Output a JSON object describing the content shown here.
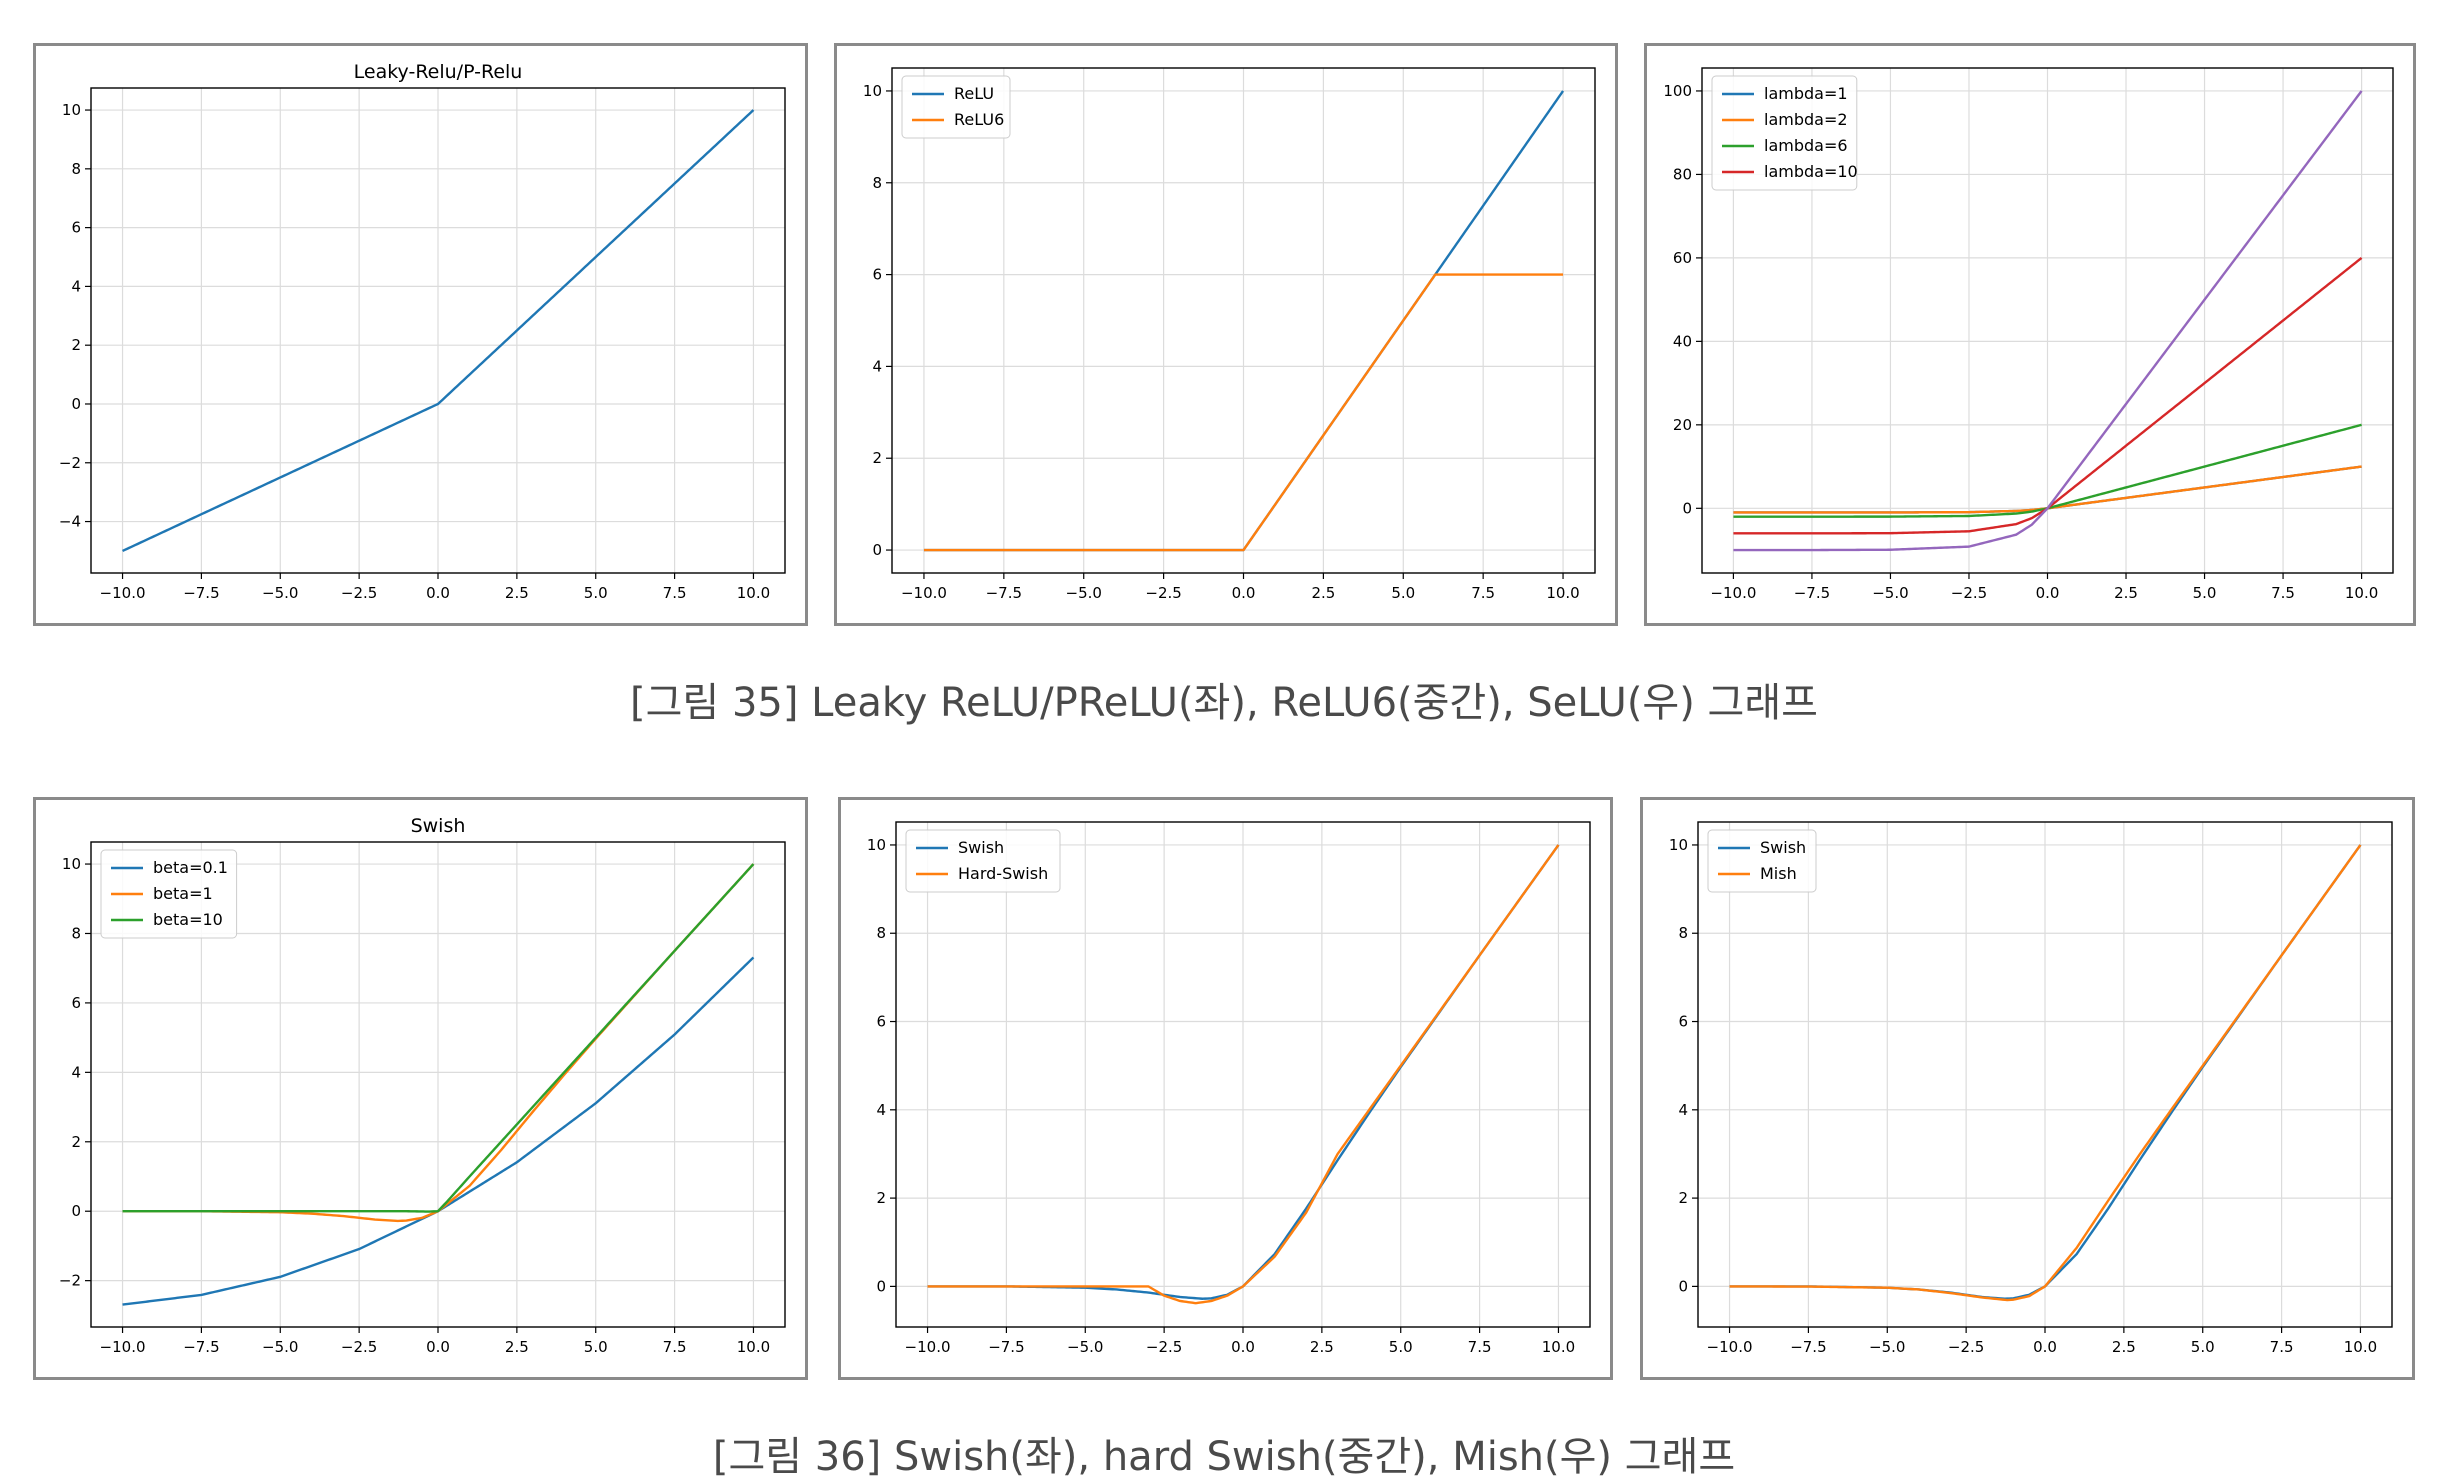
{
  "captions": {
    "fig35": "[그림 35] Leaky ReLU/PReLU(좌), ReLU6(중간), SeLU(우) 그래프",
    "fig36": "[그림 36] Swish(좌), hard Swish(중간), Mish(우) 그래프"
  },
  "chart_data": [
    {
      "type": "line",
      "title": "Leaky-Relu/P-Relu",
      "xlim": [
        -10.0,
        10.0
      ],
      "ylim": [
        -5.0,
        10.0
      ],
      "xticks": [
        -10.0,
        -7.5,
        -5.0,
        -2.5,
        0.0,
        2.5,
        5.0,
        7.5,
        10.0
      ],
      "yticks": [
        -4,
        -2,
        0,
        2,
        4,
        6,
        8,
        10
      ],
      "grid": true,
      "legend": "none",
      "series": [
        {
          "color": "#1f77b4",
          "x": [
            -10,
            0,
            10
          ],
          "y": [
            -5,
            0,
            10
          ]
        }
      ]
    },
    {
      "type": "line",
      "title": "",
      "xlim": [
        -10.0,
        10.0
      ],
      "ylim": [
        0.0,
        10.0
      ],
      "xticks": [
        -10.0,
        -7.5,
        -5.0,
        -2.5,
        0.0,
        2.5,
        5.0,
        7.5,
        10.0
      ],
      "yticks": [
        0,
        2,
        4,
        6,
        8,
        10
      ],
      "grid": true,
      "legend": "upper-left",
      "series": [
        {
          "name": "ReLU",
          "color": "#1f77b4",
          "x": [
            -10,
            0,
            10
          ],
          "y": [
            0,
            0,
            10
          ]
        },
        {
          "name": "ReLU6",
          "color": "#ff7f0e",
          "x": [
            -10,
            0,
            6,
            10
          ],
          "y": [
            0,
            0,
            6,
            6
          ]
        }
      ]
    },
    {
      "type": "line",
      "title": "",
      "xlim": [
        -10.0,
        10.0
      ],
      "ylim": [
        -10.0,
        100.0
      ],
      "xticks": [
        -10.0,
        -7.5,
        -5.0,
        -2.5,
        0.0,
        2.5,
        5.0,
        7.5,
        10.0
      ],
      "yticks": [
        0,
        20,
        40,
        60,
        80,
        100
      ],
      "grid": true,
      "legend": "upper-left",
      "series": [
        {
          "name": "lambda=1",
          "color": "#1f77b4",
          "x": [
            -10,
            -7.5,
            -5,
            -2.5,
            -1,
            -0.5,
            0,
            2.5,
            5,
            7.5,
            10
          ],
          "y": [
            -1,
            -1,
            -1,
            -0.92,
            -0.63,
            -0.39,
            0,
            2.5,
            5,
            7.5,
            10
          ]
        },
        {
          "name": "lambda=2",
          "color": "#ff7f0e",
          "x": [
            -10,
            -7.5,
            -5,
            -2.5,
            -1,
            -0.5,
            0,
            2.5,
            5,
            7.5,
            10
          ],
          "y": [
            -1,
            -1,
            -1,
            -0.92,
            -0.63,
            -0.39,
            0,
            2.5,
            5,
            7.5,
            10
          ]
        },
        {
          "name": "lambda=6",
          "color": "#2ca02c",
          "x": [
            -10,
            -7.5,
            -5,
            -2.5,
            -1,
            -0.5,
            0,
            2.5,
            5,
            7.5,
            10
          ],
          "y": [
            -2,
            -2,
            -1.99,
            -1.84,
            -1.26,
            -0.79,
            0,
            5,
            10,
            15,
            20
          ]
        },
        {
          "name": "lambda=10",
          "color": "#d62728",
          "x": [
            -10,
            -7.5,
            -5,
            -2.5,
            -1,
            -0.5,
            0,
            2.5,
            5,
            7.5,
            10
          ],
          "y": [
            -6,
            -6,
            -5.96,
            -5.51,
            -3.79,
            -2.36,
            0,
            15,
            30,
            45,
            60
          ]
        },
        {
          "color": "#9467bd",
          "x": [
            -10,
            -7.5,
            -5,
            -2.5,
            -1,
            -0.5,
            0,
            2.5,
            5,
            7.5,
            10
          ],
          "y": [
            -10,
            -10,
            -9.93,
            -9.18,
            -6.32,
            -3.93,
            0,
            25,
            50,
            75,
            100
          ]
        }
      ]
    },
    {
      "type": "line",
      "title": "Swish",
      "xlim": [
        -10.0,
        10.0
      ],
      "ylim": [
        -2.7,
        10.0
      ],
      "xticks": [
        -10.0,
        -7.5,
        -5.0,
        -2.5,
        0.0,
        2.5,
        5.0,
        7.5,
        10.0
      ],
      "yticks": [
        -2,
        0,
        2,
        4,
        6,
        8,
        10
      ],
      "grid": true,
      "legend": "upper-left",
      "series": [
        {
          "name": "beta=0.1",
          "color": "#1f77b4",
          "x": [
            -10,
            -7.5,
            -5,
            -2.5,
            0,
            2.5,
            5,
            7.5,
            10
          ],
          "y": [
            -2.69,
            -2.41,
            -1.89,
            -1.09,
            0,
            1.41,
            3.11,
            5.09,
            7.31
          ]
        },
        {
          "name": "beta=1",
          "color": "#ff7f0e",
          "x": [
            -10,
            -7.5,
            -5,
            -4,
            -3,
            -2,
            -1.28,
            -1,
            -0.5,
            0,
            1,
            2,
            3,
            4,
            5,
            7.5,
            10
          ],
          "y": [
            0,
            0,
            -0.03,
            -0.07,
            -0.14,
            -0.24,
            -0.28,
            -0.27,
            -0.19,
            0,
            0.73,
            1.76,
            2.86,
            3.93,
            4.97,
            7.5,
            10
          ]
        },
        {
          "name": "beta=10",
          "color": "#2ca02c",
          "x": [
            -10,
            -1,
            -0.3,
            0,
            0.3,
            1,
            10
          ],
          "y": [
            0,
            0,
            -0.01,
            0,
            0.29,
            1,
            10
          ]
        }
      ]
    },
    {
      "type": "line",
      "title": "",
      "xlim": [
        -10.0,
        10.0
      ],
      "ylim": [
        -0.4,
        10.0
      ],
      "xticks": [
        -10.0,
        -7.5,
        -5.0,
        -2.5,
        0.0,
        2.5,
        5.0,
        7.5,
        10.0
      ],
      "yticks": [
        0,
        2,
        4,
        6,
        8,
        10
      ],
      "grid": true,
      "legend": "upper-left",
      "series": [
        {
          "name": "Swish",
          "color": "#1f77b4",
          "x": [
            -10,
            -7.5,
            -5,
            -4,
            -3,
            -2,
            -1.28,
            -1,
            -0.5,
            0,
            1,
            2,
            3,
            4,
            5,
            7.5,
            10
          ],
          "y": [
            0,
            0,
            -0.03,
            -0.07,
            -0.14,
            -0.24,
            -0.28,
            -0.27,
            -0.19,
            0,
            0.73,
            1.76,
            2.86,
            3.93,
            4.97,
            7.5,
            10
          ]
        },
        {
          "name": "Hard-Swish",
          "color": "#ff7f0e",
          "x": [
            -10,
            -3,
            -2.5,
            -2,
            -1.5,
            -1,
            -0.5,
            0,
            1,
            2,
            3,
            5,
            10
          ],
          "y": [
            0,
            0,
            -0.21,
            -0.33,
            -0.38,
            -0.33,
            -0.21,
            0,
            0.67,
            1.67,
            3,
            5,
            10
          ]
        }
      ]
    },
    {
      "type": "line",
      "title": "",
      "xlim": [
        -10.0,
        10.0
      ],
      "ylim": [
        -0.4,
        10.0
      ],
      "xticks": [
        -10.0,
        -7.5,
        -5.0,
        -2.5,
        0.0,
        2.5,
        5.0,
        7.5,
        10.0
      ],
      "yticks": [
        0,
        2,
        4,
        6,
        8,
        10
      ],
      "grid": true,
      "legend": "upper-left",
      "series": [
        {
          "name": "Swish",
          "color": "#1f77b4",
          "x": [
            -10,
            -7.5,
            -5,
            -4,
            -3,
            -2,
            -1.28,
            -1,
            -0.5,
            0,
            1,
            2,
            3,
            4,
            5,
            7.5,
            10
          ],
          "y": [
            0,
            0,
            -0.03,
            -0.07,
            -0.14,
            -0.24,
            -0.28,
            -0.27,
            -0.19,
            0,
            0.73,
            1.76,
            2.86,
            3.93,
            4.97,
            7.5,
            10
          ]
        },
        {
          "name": "Mish",
          "color": "#ff7f0e",
          "x": [
            -10,
            -7.5,
            -5,
            -4,
            -3,
            -2,
            -1.2,
            -1,
            -0.5,
            0,
            1,
            2,
            3,
            4,
            5,
            7.5,
            10
          ],
          "y": [
            0,
            -0.004,
            -0.03,
            -0.07,
            -0.15,
            -0.25,
            -0.31,
            -0.3,
            -0.22,
            0,
            0.87,
            1.94,
            2.99,
            4,
            5,
            7.5,
            10
          ]
        }
      ]
    }
  ]
}
